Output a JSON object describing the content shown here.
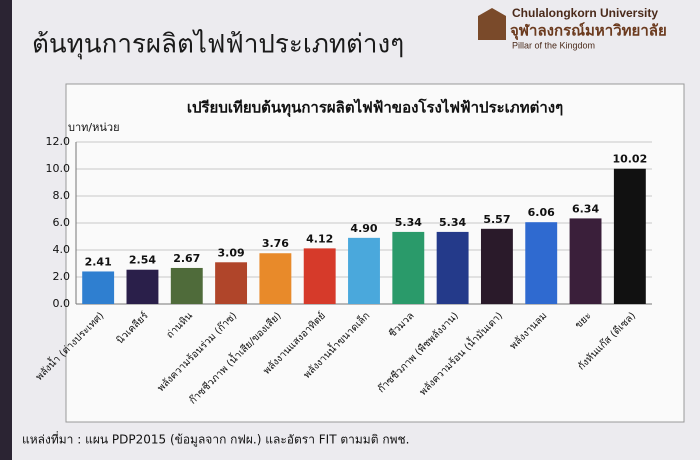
{
  "header": {
    "title": "ต้นทุนการผลิตไฟฟ้าประเภทต่างๆ",
    "logo_en": "Chulalongkorn University",
    "logo_th": "จุฬาลงกรณ์มหาวิทยาลัย",
    "logo_tagline": "Pillar of the Kingdom"
  },
  "chart_data": {
    "type": "bar",
    "title": "เปรียบเทียบต้นทุนการผลิตไฟฟ้าของโรงไฟฟ้าประเภทต่างๆ",
    "y_label": "บาท/หน่วย",
    "categories": [
      "พลังน้ำ (ต่างประเทศ)",
      "นิวเคลียร์",
      "ถ่านหิน",
      "พลังความร้อนร่วม (ก๊าซ)",
      "ก๊าซชีวภาพ (น้ำเสีย/ของเสีย)",
      "พลังงานแสงอาทิตย์",
      "พลังงานน้ำขนาดเล็ก",
      "ชีวมวล",
      "ก๊าซชีวภาพ (พืชพลังงาน)",
      "พลังความร้อน (น้ำมันเตา)",
      "พลังงานลม",
      "ขยะ",
      "กังหันแก๊ส (ดีเซล)"
    ],
    "values": [
      2.41,
      2.54,
      2.67,
      3.09,
      3.76,
      4.12,
      4.9,
      5.34,
      5.34,
      5.57,
      6.06,
      6.34,
      10.02
    ],
    "value_labels": [
      "2.41",
      "2.54",
      "2.67",
      "3.09",
      "3.76",
      "4.12",
      "4.90",
      "5.34",
      "5.34",
      "5.57",
      "6.06",
      "6.34",
      "10.02"
    ],
    "colors": [
      "#2f7fd0",
      "#2a1f4a",
      "#4f6b3a",
      "#b0452a",
      "#e88a2a",
      "#d63a2a",
      "#4aa8dc",
      "#2a9a6a",
      "#243a8a",
      "#2a1a2a",
      "#2f6ad0",
      "#3a1f3a",
      "#111111"
    ],
    "ylim": [
      0,
      12
    ],
    "yticks": [
      {
        "value": 0,
        "label": "0.0"
      },
      {
        "value": 2,
        "label": "2.0"
      },
      {
        "value": 4,
        "label": "4.0"
      },
      {
        "value": 6,
        "label": "6.0"
      },
      {
        "value": 8,
        "label": "8.0"
      },
      {
        "value": 10,
        "label": "10.0"
      },
      {
        "value": 12,
        "label": "12.0"
      }
    ],
    "grid": true
  },
  "footer": {
    "source": "แหล่งที่มา : แผน PDP2015 (ข้อมูลจาก กฟผ.) และอัตรา FIT ตามมติ กพช."
  }
}
